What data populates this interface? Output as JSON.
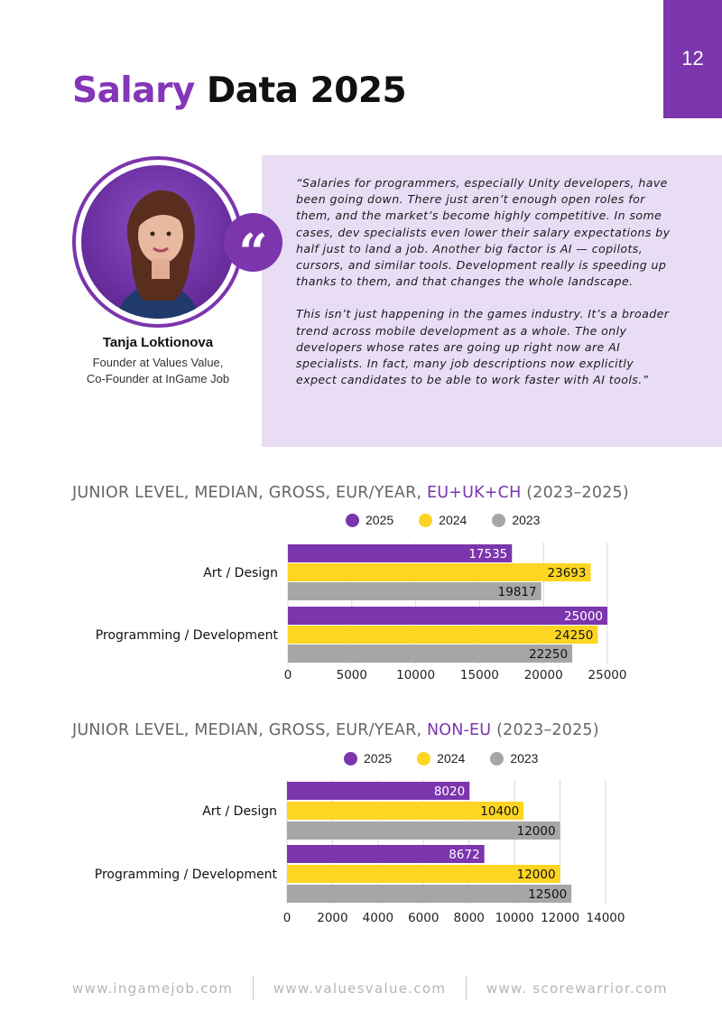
{
  "page_number": "12",
  "title": {
    "accent": "Salary",
    "rest": " Data 2025"
  },
  "quote": {
    "paragraphs": [
      "“Salaries for programmers, especially Unity developers, have been going down. There just aren’t enough open roles for them, and the market’s become highly competitive. In some cases, dev specialists even lower their salary expectations by half just to land a job. Another big factor is AI — copilots, cursors, and similar tools. Development really is speeding up thanks to them, and that changes the whole landscape.",
      "This isn’t just happening in the games industry. It’s a broader trend across mobile development as a whole. The only developers whose rates are going up right now are AI specialists. In fact, many job descriptions now explicitly expect candidates to be able to work faster with AI tools.”"
    ],
    "mark": "“"
  },
  "person": {
    "name": "Tanja Loktionova",
    "role_line1": "Founder at Values Value,",
    "role_line2": "Co-Founder at InGame Job"
  },
  "colors": {
    "accent": "#7b35ad",
    "y2025": "#7b35ad",
    "y2024": "#fdd522",
    "y2023": "#a6a6a6",
    "quote_bg": "#e9ddf6"
  },
  "chart_data": [
    {
      "type": "bar",
      "orientation": "horizontal",
      "title_prefix": "JUNIOR LEVEL, MEDIAN, GROSS, EUR/YEAR, ",
      "title_region": "EU+UK+CH",
      "title_suffix": " (2023–2025)",
      "legend": [
        "2025",
        "2024",
        "2023"
      ],
      "categories": [
        "Art / Design",
        "Programming / Development"
      ],
      "series": [
        {
          "name": "2025",
          "values": [
            17535,
            25000
          ]
        },
        {
          "name": "2024",
          "values": [
            23693,
            24250
          ]
        },
        {
          "name": "2023",
          "values": [
            19817,
            22250
          ]
        }
      ],
      "xlim": [
        0,
        25000
      ],
      "ticks": [
        0,
        5000,
        10000,
        15000,
        20000,
        25000
      ]
    },
    {
      "type": "bar",
      "orientation": "horizontal",
      "title_prefix": "JUNIOR LEVEL, MEDIAN, GROSS, EUR/YEAR, ",
      "title_region": "NON-EU",
      "title_suffix": " (2023–2025)",
      "legend": [
        "2025",
        "2024",
        "2023"
      ],
      "categories": [
        "Art / Design",
        "Programming / Development"
      ],
      "series": [
        {
          "name": "2025",
          "values": [
            8020,
            8672
          ]
        },
        {
          "name": "2024",
          "values": [
            10400,
            12000
          ]
        },
        {
          "name": "2023",
          "values": [
            12000,
            12500
          ]
        }
      ],
      "xlim": [
        0,
        14000
      ],
      "ticks": [
        0,
        2000,
        4000,
        6000,
        8000,
        10000,
        12000,
        14000
      ]
    }
  ],
  "footer": {
    "link1": "www.ingamejob.com",
    "link2": "www.valuesvalue.com",
    "link3": "www. scorewarrior.com"
  }
}
